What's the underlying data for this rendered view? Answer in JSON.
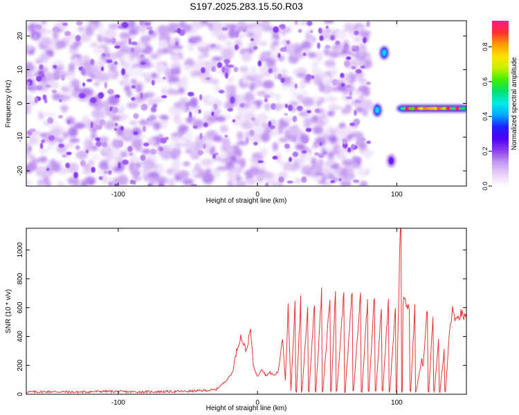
{
  "title": "S197.2025.283.15.50.R03",
  "chart_data": [
    {
      "type": "heatmap",
      "xlabel": "Height of straight line (km)",
      "ylabel": "Frequency (Hz)",
      "xlim": [
        -166,
        150
      ],
      "ylim": [
        -24.5,
        24.5
      ],
      "xticks": [
        -100,
        0,
        100
      ],
      "yticks": [
        -20,
        -10,
        0,
        10,
        20
      ],
      "colorbar": {
        "label": "Normalized spectral amplitude",
        "range": [
          0,
          0.95
        ],
        "ticks": [
          0.0,
          0.2,
          0.4,
          0.6,
          0.8
        ],
        "colors": [
          "#ffffff",
          "#e6d2f7",
          "#c49af0",
          "#8a3ff0",
          "#4f00f0",
          "#1f1fff",
          "#00a8ff",
          "#00eaea",
          "#00e070",
          "#40f000",
          "#c8f000",
          "#ffe000",
          "#ff9a00",
          "#ff3030",
          "#ff1a8c"
        ]
      },
      "features": [
        {
          "name": "noise",
          "x_range": [
            -166,
            80
          ],
          "amplitude": 0.15
        },
        {
          "name": "blob",
          "x": -18,
          "y": 1,
          "amplitude": 0.2
        },
        {
          "name": "blob",
          "x": 86,
          "y": -2,
          "amplitude": 0.45
        },
        {
          "name": "blob",
          "x": 91,
          "y": 15,
          "amplitude": 0.45
        },
        {
          "name": "blob",
          "x": 96,
          "y": -17,
          "amplitude": 0.25
        },
        {
          "name": "band",
          "x_range": [
            103,
            149
          ],
          "y": -1.5,
          "amplitude_range": [
            0.3,
            0.9
          ]
        }
      ]
    },
    {
      "type": "line",
      "xlabel": "Height of straight line (km)",
      "ylabel": "SNR (10 * v/v)",
      "xlim": [
        -166,
        150
      ],
      "ylim": [
        0,
        1150
      ],
      "xticks": [
        -100,
        0,
        100
      ],
      "yticks": [
        0,
        200,
        400,
        600,
        800,
        1000
      ],
      "color": "#e53333",
      "x": [
        -166,
        -150,
        -130,
        -110,
        -90,
        -70,
        -50,
        -40,
        -30,
        -22,
        -18,
        -15,
        -12,
        -10,
        -8,
        -5,
        -3,
        0,
        3,
        6,
        9,
        12,
        15,
        18,
        20,
        22,
        24,
        27,
        28,
        31,
        32,
        36,
        37,
        41,
        42,
        46,
        47,
        52,
        53,
        56,
        57,
        62,
        63,
        68,
        69,
        74,
        75,
        79,
        80,
        84,
        85,
        89,
        90,
        94,
        95,
        99,
        100,
        102,
        103,
        104,
        105,
        109,
        110,
        113,
        114,
        118,
        119,
        122,
        123,
        126,
        127,
        130,
        131,
        134,
        135,
        138,
        140,
        143,
        146,
        150
      ],
      "y": [
        15,
        18,
        15,
        20,
        16,
        18,
        20,
        25,
        30,
        100,
        150,
        300,
        400,
        350,
        300,
        450,
        200,
        120,
        180,
        130,
        150,
        130,
        160,
        400,
        100,
        600,
        20,
        620,
        20,
        650,
        20,
        600,
        20,
        650,
        20,
        700,
        20,
        680,
        20,
        750,
        20,
        700,
        20,
        720,
        20,
        700,
        20,
        650,
        20,
        700,
        20,
        620,
        20,
        650,
        20,
        600,
        20,
        950,
        1150,
        20,
        640,
        600,
        20,
        600,
        20,
        250,
        200,
        600,
        20,
        550,
        20,
        380,
        20,
        300,
        20,
        450,
        580,
        500,
        560,
        520
      ]
    }
  ]
}
